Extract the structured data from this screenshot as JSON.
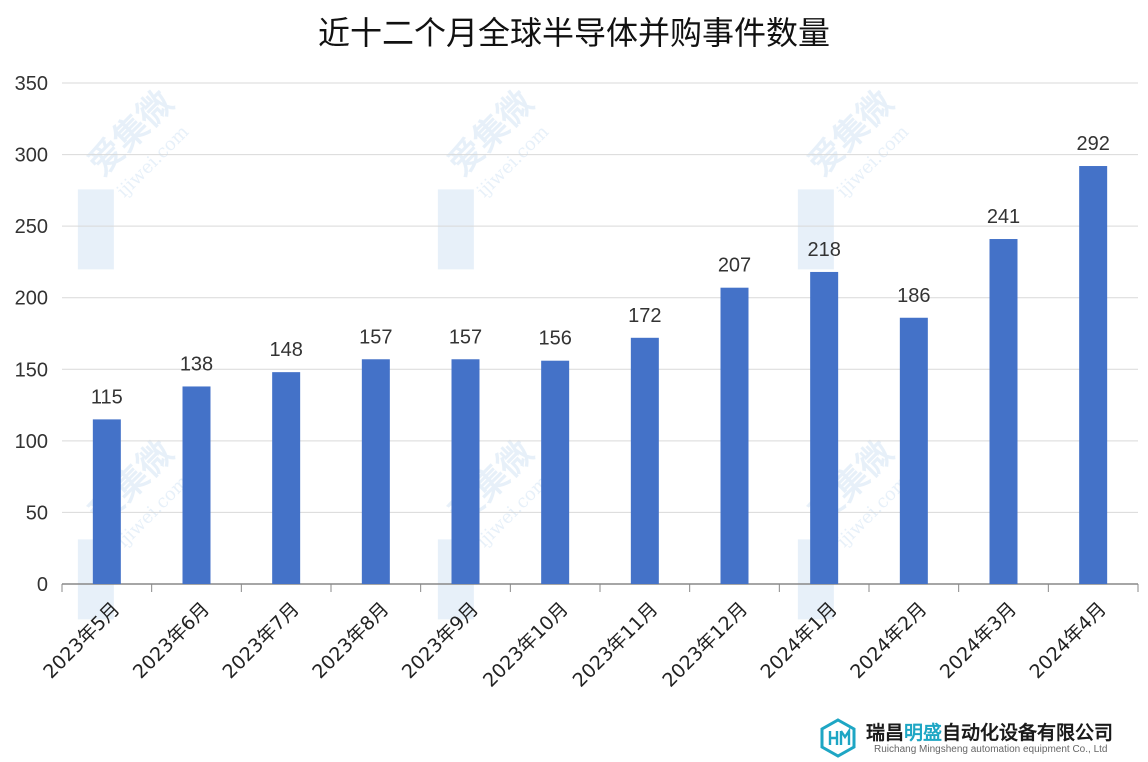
{
  "chart_data": {
    "type": "bar",
    "title": "近十二个月全球半导体并购事件数量",
    "categories": [
      "2023年5月",
      "2023年6月",
      "2023年7月",
      "2023年8月",
      "2023年9月",
      "2023年10月",
      "2023年11月",
      "2023年12月",
      "2024年1月",
      "2024年2月",
      "2024年3月",
      "2024年4月"
    ],
    "values": [
      115,
      138,
      148,
      157,
      157,
      156,
      172,
      207,
      218,
      186,
      241,
      292
    ],
    "ylim": [
      0,
      350
    ],
    "yticks": [
      0,
      50,
      100,
      150,
      200,
      250,
      300,
      350
    ],
    "grid": true,
    "data_labels": true,
    "bar_color": "#4472c8"
  },
  "watermark": {
    "text": "爱集微",
    "subtext": "ijiwei.com",
    "color": "#1e78c8"
  },
  "logo": {
    "name_pre": "瑞昌",
    "name_hl": "明盛",
    "name_post": "自动化设备有限公司",
    "name_en": "Ruichang Mingsheng automation equipment Co., Ltd",
    "accent_color": "#1ea6c4"
  }
}
